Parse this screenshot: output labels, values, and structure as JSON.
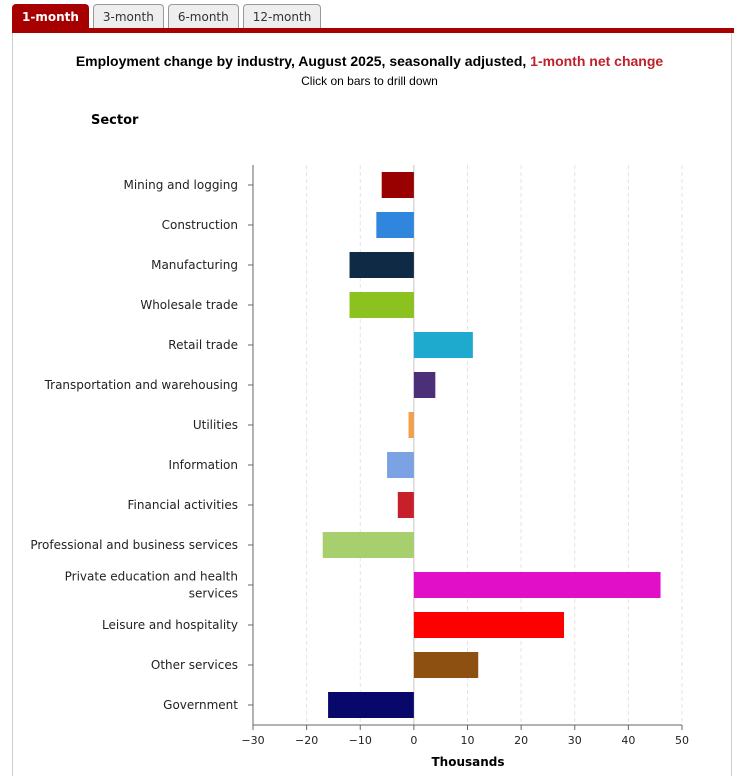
{
  "tabs": [
    "1-month",
    "3-month",
    "6-month",
    "12-month"
  ],
  "active_tab": 0,
  "title_main": "Employment change by industry, August 2025, seasonally adjusted,",
  "title_accent": "1-month net change",
  "subtitle": "Click on bars to drill down",
  "colors": {
    "accent": "#a70000",
    "title_accent": "#c0202a"
  },
  "chart_data": {
    "type": "bar",
    "orientation": "horizontal",
    "title": "Employment change by industry, August 2025, seasonally adjusted, 1-month net change",
    "subtitle": "Click on bars to drill down",
    "ylabel": "Sector",
    "xlabel": "Thousands",
    "xlim": [
      -30,
      50
    ],
    "xticks": [
      -30,
      -20,
      -10,
      0,
      10,
      20,
      30,
      40,
      50
    ],
    "grid": "vertical dashed",
    "categories": [
      [
        "Mining and logging"
      ],
      [
        "Construction"
      ],
      [
        "Manufacturing"
      ],
      [
        "Wholesale trade"
      ],
      [
        "Retail trade"
      ],
      [
        "Transportation and warehousing"
      ],
      [
        "Utilities"
      ],
      [
        "Information"
      ],
      [
        "Financial activities"
      ],
      [
        "Professional and business services"
      ],
      [
        "Private education and health",
        "services"
      ],
      [
        "Leisure and hospitality"
      ],
      [
        "Other services"
      ],
      [
        "Government"
      ]
    ],
    "values": [
      -6,
      -7,
      -12,
      -12,
      11,
      4,
      -1,
      -5,
      -3,
      -17,
      46,
      28,
      12,
      -16
    ],
    "bar_colors": [
      "#990000",
      "#2f86dc",
      "#0f2a44",
      "#8cc21f",
      "#1ea9cf",
      "#4b2f79",
      "#f4a04a",
      "#7ba3e4",
      "#c8202a",
      "#a8cf6e",
      "#e20fc8",
      "#ff0000",
      "#8e5010",
      "#08086b"
    ]
  }
}
